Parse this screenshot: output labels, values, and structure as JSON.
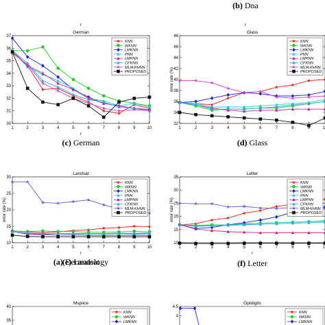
{
  "top_captions": [
    {
      "letter": "(a)",
      "name": "Dermatology",
      "r": "r"
    },
    {
      "letter": "(b)",
      "name": "Dna",
      "r": "r"
    }
  ],
  "markers": [
    "star",
    "circle",
    "diamond",
    "tri",
    "tri",
    "tri",
    "star",
    "square"
  ],
  "chart_data": [
    {
      "id": "german",
      "type": "line",
      "title": "German",
      "caption_letter": "(c)",
      "caption_name": "German",
      "xlabel": "r",
      "ylabel": "",
      "ylim": [
        30,
        37
      ],
      "yticks": [
        30,
        31,
        32,
        33,
        34,
        35,
        36,
        37
      ],
      "x": [
        1,
        2,
        3,
        4,
        5,
        6,
        7,
        8,
        9,
        10
      ],
      "series": [
        {
          "name": "KNN",
          "color": "#e21e1e",
          "values": [
            35.8,
            34.6,
            32.7,
            32.8,
            32.2,
            31.7,
            31.0,
            30.8,
            31.5,
            31.2
          ]
        },
        {
          "name": "WKNN",
          "color": "#22cc22",
          "values": [
            35.8,
            35.8,
            36.1,
            34.4,
            33.5,
            32.8,
            32.2,
            31.8,
            31.6,
            31.4
          ]
        },
        {
          "name": "LMKNN",
          "color": "#2020c8",
          "values": [
            36.8,
            35.3,
            34.6,
            33.7,
            32.7,
            32.1,
            31.6,
            31.4,
            31.2,
            31.1
          ]
        },
        {
          "name": "PNN",
          "color": "#1ad0d0",
          "values": [
            35.8,
            34.5,
            33.9,
            33.4,
            32.8,
            32.0,
            31.8,
            31.4,
            31.6,
            31.3
          ]
        },
        {
          "name": "LMPNN",
          "color": "#c8208a",
          "values": [
            35.7,
            34.6,
            34.0,
            33.2,
            32.7,
            32.0,
            31.6,
            31.4,
            31.2,
            31.1
          ]
        },
        {
          "name": "CFKNN",
          "color": "#30a8e0",
          "values": [
            35.8,
            34.8,
            33.4,
            32.9,
            32.3,
            31.9,
            31.7,
            31.3,
            31.2,
            31.0
          ]
        },
        {
          "name": "MLM-KHNN",
          "color": "#d040d0",
          "values": [
            35.6,
            34.7,
            33.2,
            32.6,
            32.0,
            31.6,
            31.2,
            31.0,
            31.1,
            31.0
          ]
        },
        {
          "name": "PROPOSED",
          "color": "#111111",
          "values": [
            35.7,
            32.8,
            31.7,
            31.5,
            32.0,
            31.4,
            30.5,
            31.7,
            32.0,
            32.1
          ]
        }
      ]
    },
    {
      "id": "glass",
      "type": "line",
      "title": "Glass",
      "caption_letter": "(d)",
      "caption_name": "Glass",
      "xlabel": "",
      "ylabel": "error rate (%)",
      "ylim": [
        32,
        48
      ],
      "yticks": [
        32,
        34,
        36,
        38,
        40,
        42,
        44,
        46,
        48
      ],
      "x": [
        1,
        2,
        3,
        4,
        5,
        6,
        7,
        8,
        9,
        10
      ],
      "series": [
        {
          "name": "KNN",
          "color": "#e21e1e",
          "values": [
            35.8,
            35.6,
            35.4,
            36.6,
            37.6,
            37.8,
            38.6,
            39.0,
            39.8,
            40.0
          ]
        },
        {
          "name": "WKNN",
          "color": "#22cc22",
          "values": [
            35.8,
            35.2,
            34.4,
            34.6,
            34.6,
            34.8,
            34.8,
            35.2,
            35.6,
            36.0
          ]
        },
        {
          "name": "LMKNN",
          "color": "#2020c8",
          "values": [
            35.8,
            36.0,
            36.6,
            37.2,
            37.6,
            37.4,
            37.0,
            37.0,
            37.2,
            37.8
          ]
        },
        {
          "name": "PNN",
          "color": "#1ad0d0",
          "values": [
            35.8,
            35.6,
            35.0,
            35.0,
            35.0,
            35.2,
            35.4,
            35.6,
            35.8,
            36.4
          ]
        },
        {
          "name": "LMPNN",
          "color": "#c8208a",
          "values": [
            35.8,
            35.4,
            34.8,
            34.4,
            34.2,
            34.4,
            34.4,
            34.6,
            34.6,
            34.6
          ]
        },
        {
          "name": "CFKNN",
          "color": "#30a8e0",
          "values": [
            35.8,
            35.4,
            34.6,
            34.6,
            34.6,
            34.8,
            35.0,
            35.4,
            35.6,
            36.0
          ]
        },
        {
          "name": "MLM-KHNN",
          "color": "#d040d0",
          "values": [
            39.8,
            39.8,
            39.4,
            38.4,
            37.6,
            37.8,
            36.8,
            36.6,
            36.8,
            37.0
          ]
        },
        {
          "name": "PROPOSED",
          "color": "#111111",
          "values": [
            34.0,
            33.6,
            33.4,
            33.2,
            33.0,
            32.8,
            32.6,
            32.2,
            31.6,
            33.0
          ]
        }
      ]
    },
    {
      "id": "landsat",
      "type": "line",
      "title": "Landsat",
      "caption_letter": "(e)",
      "caption_name": "Landsat",
      "xlabel": "r",
      "ylabel": "error rate (%)",
      "ylim": [
        10,
        30
      ],
      "yticks": [
        10,
        15,
        20,
        25,
        30
      ],
      "x": [
        1,
        2,
        3,
        4,
        5,
        6,
        7,
        8,
        9,
        10
      ],
      "series": [
        {
          "name": "KNN",
          "color": "#e21e1e",
          "values": [
            13.6,
            13.3,
            13.1,
            13.3,
            13.7,
            13.9,
            14.4,
            14.6,
            15.0,
            14.9
          ]
        },
        {
          "name": "WKNN",
          "color": "#22cc22",
          "values": [
            13.6,
            13.4,
            13.6,
            13.4,
            13.4,
            13.2,
            13.2,
            13.3,
            13.5,
            13.3
          ]
        },
        {
          "name": "LMKNN",
          "color": "#2020c8",
          "values": [
            13.4,
            12.8,
            12.6,
            12.7,
            12.7,
            12.6,
            12.6,
            12.7,
            12.6,
            12.7
          ]
        },
        {
          "name": "PNN",
          "color": "#1ad0d0",
          "values": [
            13.4,
            12.9,
            12.7,
            12.7,
            12.6,
            12.6,
            12.6,
            12.7,
            12.7,
            12.8
          ]
        },
        {
          "name": "LMPNN",
          "color": "#c8208a",
          "values": [
            13.4,
            12.6,
            12.4,
            12.3,
            12.3,
            12.2,
            12.2,
            12.2,
            12.2,
            12.2
          ]
        },
        {
          "name": "CFKNN",
          "color": "#30a8e0",
          "values": [
            13.4,
            12.9,
            12.8,
            12.8,
            12.8,
            12.8,
            12.8,
            12.9,
            12.9,
            13.0
          ]
        },
        {
          "name": "MLM-KHNN",
          "color": "#7050e0",
          "values": [
            28.5,
            28.5,
            22.2,
            22.0,
            22.5,
            23.0,
            21.5,
            20.3,
            19.7,
            19.0
          ]
        },
        {
          "name": "PROPOSED",
          "color": "#111111",
          "values": [
            12.3,
            11.9,
            11.8,
            11.8,
            11.8,
            11.8,
            11.8,
            11.8,
            11.8,
            11.8
          ]
        }
      ]
    },
    {
      "id": "letter",
      "type": "line",
      "title": "Letter",
      "caption_letter": "(f)",
      "caption_name": "Letter",
      "xlabel": "r",
      "ylabel": "error rate (%)",
      "ylim": [
        10,
        35
      ],
      "yticks": [
        10,
        15,
        20,
        25,
        30,
        35
      ],
      "x": [
        1,
        2,
        3,
        4,
        5,
        6,
        7,
        8,
        9,
        10
      ],
      "series": [
        {
          "name": "KNN",
          "color": "#e21e1e",
          "values": [
            16.8,
            17.2,
            18.6,
            19.4,
            21.2,
            22.2,
            23.8,
            24.6,
            25.8,
            26.5
          ]
        },
        {
          "name": "WKNN",
          "color": "#22cc22",
          "values": [
            16.8,
            16.6,
            16.8,
            16.8,
            17.2,
            17.4,
            17.6,
            17.8,
            18.0,
            18.2
          ]
        },
        {
          "name": "LMKNN",
          "color": "#2020c8",
          "values": [
            16.8,
            15.4,
            15.8,
            16.8,
            17.6,
            18.6,
            19.8,
            21.6,
            22.6,
            23.6
          ]
        },
        {
          "name": "PNN",
          "color": "#1ad0d0",
          "values": [
            16.8,
            16.4,
            16.6,
            16.8,
            17.0,
            17.4,
            17.6,
            17.8,
            18.0,
            18.4
          ]
        },
        {
          "name": "LMPNN",
          "color": "#c8208a",
          "values": [
            16.8,
            15.2,
            14.6,
            14.2,
            14.0,
            13.8,
            13.8,
            13.8,
            13.8,
            13.8
          ]
        },
        {
          "name": "CFKNN",
          "color": "#30a8e0",
          "values": [
            16.8,
            16.2,
            16.4,
            16.6,
            16.8,
            17.0,
            17.2,
            17.4,
            17.6,
            17.8
          ]
        },
        {
          "name": "MLM-KHNN",
          "color": "#7050e0",
          "values": [
            25.0,
            24.8,
            24.8,
            23.6,
            23.8,
            23.2,
            23.0,
            23.4,
            23.2,
            23.0
          ]
        },
        {
          "name": "PROPOSED",
          "color": "#111111",
          "values": [
            9.8,
            9.7,
            9.7,
            9.7,
            9.8,
            9.8,
            9.8,
            9.8,
            9.8,
            9.8
          ]
        }
      ]
    },
    {
      "id": "msplice",
      "type": "line",
      "title": "Msplice",
      "partial": true,
      "ylim": [
        30,
        40
      ],
      "yticks": [
        35,
        40
      ],
      "legend": [
        "KNN",
        "WKNN",
        "LMKNN",
        "PNN"
      ]
    },
    {
      "id": "optdigits",
      "type": "line",
      "title": "Optdigits",
      "partial": true,
      "ylim": [
        3,
        4.5
      ],
      "yticks": [
        4,
        4.5
      ],
      "legend": [
        "KNN",
        "WKNN",
        "LMKNN",
        "PNN"
      ]
    }
  ]
}
